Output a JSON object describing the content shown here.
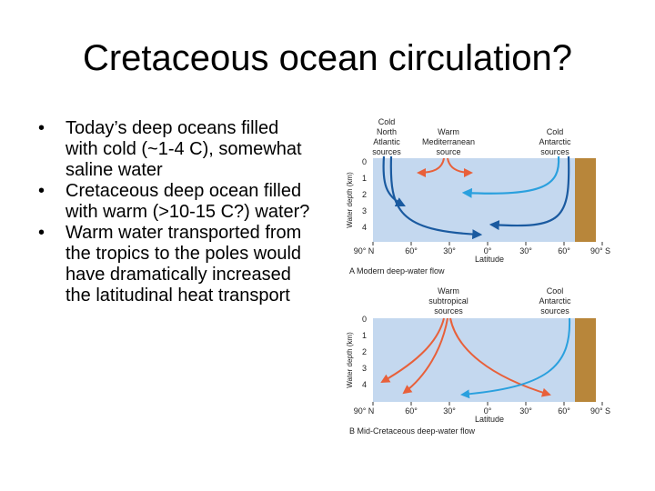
{
  "slide": {
    "title": "Cretaceous ocean circulation?",
    "bullets": [
      "Today’s deep oceans filled with cold (~1-4 C), somewhat saline water",
      "Cretaceous deep ocean filled with warm (>10-15 C?) water?",
      "Warm water transported from the tropics to the poles would have dramatically increased the latitudinal heat transport"
    ]
  },
  "figure": {
    "colors": {
      "water": "#c4d8ef",
      "land": "#b8863a",
      "cold": "#1a5aa0",
      "cool": "#2aa0de",
      "warm": "#e8603a"
    },
    "depth_ticks": [
      "0",
      "1",
      "2",
      "3",
      "4"
    ],
    "lat_ticks": [
      "90° N",
      "60°",
      "30°",
      "0°",
      "30°",
      "60°",
      "90° S"
    ],
    "ylabel": "Water depth (km)",
    "xlabel": "Latitude",
    "panelA": {
      "caption": "A  Modern deep-water flow",
      "src_left": [
        "Cold",
        "North",
        "Atlantic",
        "sources"
      ],
      "src_mid": [
        "Warm",
        "Mediterranean",
        "source"
      ],
      "src_right": [
        "Cold",
        "Antarctic",
        "sources"
      ]
    },
    "panelB": {
      "caption": "B  Mid-Cretaceous deep-water flow",
      "src_mid": [
        "Warm",
        "subtropical",
        "sources"
      ],
      "src_right": [
        "Cool",
        "Antarctic",
        "sources"
      ]
    }
  }
}
